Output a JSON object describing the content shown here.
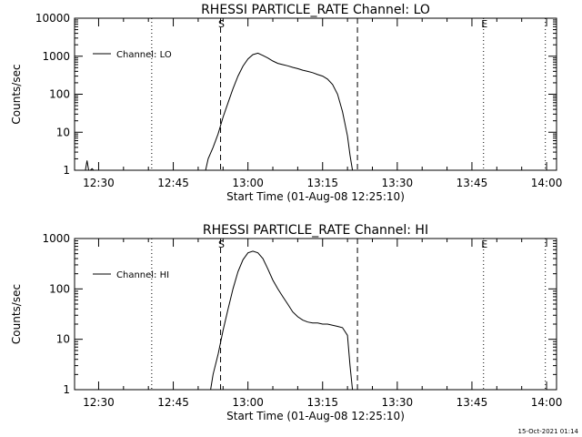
{
  "chart_data": [
    {
      "type": "line",
      "title": "RHESSI PARTICLE_RATE Channel: LO",
      "xlabel": "Start Time (01-Aug-08 12:25:10)",
      "ylabel": "Counts/sec",
      "y_scale": "log",
      "xlim": [
        "12:25:10",
        "14:02:00"
      ],
      "ylim": [
        1,
        10000
      ],
      "x_ticks": [
        "12:30",
        "12:45",
        "13:00",
        "13:15",
        "13:30",
        "13:45",
        "14:00"
      ],
      "y_ticks": [
        "1",
        "10",
        "100",
        "1000",
        "10000"
      ],
      "legend": {
        "position": "top-left",
        "entries": [
          "Channel: LO"
        ]
      },
      "markers": [
        {
          "label": "S",
          "time": "12:54:30",
          "style": "dashed"
        },
        {
          "label": "",
          "time": "13:22:00",
          "style": "dashed"
        },
        {
          "label": "",
          "time": "12:40:40",
          "style": "dotted"
        },
        {
          "label": "E",
          "time": "13:47:20",
          "style": "dotted"
        },
        {
          "label": "",
          "time": "13:59:45",
          "style": "dotted"
        }
      ],
      "series": [
        {
          "name": "Channel: LO",
          "x": [
            "12:27:00",
            "12:27:20",
            "12:27:40",
            "12:28:00",
            "12:28:20",
            "12:28:40",
            "12:29:00",
            "12:51:30",
            "12:52:00",
            "12:53:00",
            "12:54:00",
            "12:55:00",
            "12:56:00",
            "12:57:00",
            "12:58:00",
            "12:59:00",
            "13:00:00",
            "13:01:00",
            "13:02:00",
            "13:03:00",
            "13:04:00",
            "13:05:00",
            "13:06:00",
            "13:07:00",
            "13:08:00",
            "13:09:00",
            "13:10:00",
            "13:11:00",
            "13:12:00",
            "13:13:00",
            "13:14:00",
            "13:15:00",
            "13:16:00",
            "13:17:00",
            "13:18:00",
            "13:19:00",
            "13:20:00",
            "13:20:30",
            "13:21:00"
          ],
          "y": [
            1,
            1,
            1.8,
            1,
            1,
            1.1,
            1,
            1,
            2,
            4,
            9,
            25,
            60,
            140,
            300,
            550,
            850,
            1100,
            1200,
            1050,
            900,
            750,
            650,
            600,
            560,
            510,
            470,
            430,
            400,
            370,
            330,
            300,
            250,
            180,
            100,
            35,
            8,
            2.5,
            1
          ]
        }
      ]
    },
    {
      "type": "line",
      "title": "RHESSI PARTICLE_RATE Channel: HI",
      "xlabel": "Start Time (01-Aug-08 12:25:10)",
      "ylabel": "Counts/sec",
      "y_scale": "log",
      "xlim": [
        "12:25:10",
        "14:02:00"
      ],
      "ylim": [
        1,
        1000
      ],
      "x_ticks": [
        "12:30",
        "12:45",
        "13:00",
        "13:15",
        "13:30",
        "13:45",
        "14:00"
      ],
      "y_ticks": [
        "1",
        "10",
        "100",
        "1000"
      ],
      "legend": {
        "position": "top-left",
        "entries": [
          "Channel: HI"
        ]
      },
      "markers": [
        {
          "label": "S",
          "time": "12:54:30",
          "style": "dashed"
        },
        {
          "label": "",
          "time": "13:22:00",
          "style": "dashed"
        },
        {
          "label": "",
          "time": "12:40:40",
          "style": "dotted"
        },
        {
          "label": "E",
          "time": "13:47:20",
          "style": "dotted"
        },
        {
          "label": "",
          "time": "13:59:45",
          "style": "dotted"
        }
      ],
      "series": [
        {
          "name": "Channel: HI",
          "x": [
            "12:52:30",
            "12:53:00",
            "12:54:00",
            "12:55:00",
            "12:56:00",
            "12:57:00",
            "12:58:00",
            "12:59:00",
            "13:00:00",
            "13:01:00",
            "13:02:00",
            "13:03:00",
            "13:04:00",
            "13:05:00",
            "13:06:00",
            "13:07:00",
            "13:08:00",
            "13:09:00",
            "13:10:00",
            "13:11:00",
            "13:12:00",
            "13:13:00",
            "13:14:00",
            "13:15:00",
            "13:16:00",
            "13:17:00",
            "13:18:00",
            "13:19:00",
            "13:20:00",
            "13:20:30",
            "13:21:00"
          ],
          "y": [
            1,
            2,
            5,
            15,
            40,
            100,
            220,
            380,
            520,
            560,
            520,
            400,
            250,
            150,
            100,
            70,
            50,
            35,
            28,
            24,
            22,
            21,
            21,
            20,
            20,
            19,
            18,
            17,
            12,
            3,
            1
          ]
        }
      ]
    }
  ],
  "footer": {
    "timestamp": "15-Oct-2021 01:14"
  }
}
